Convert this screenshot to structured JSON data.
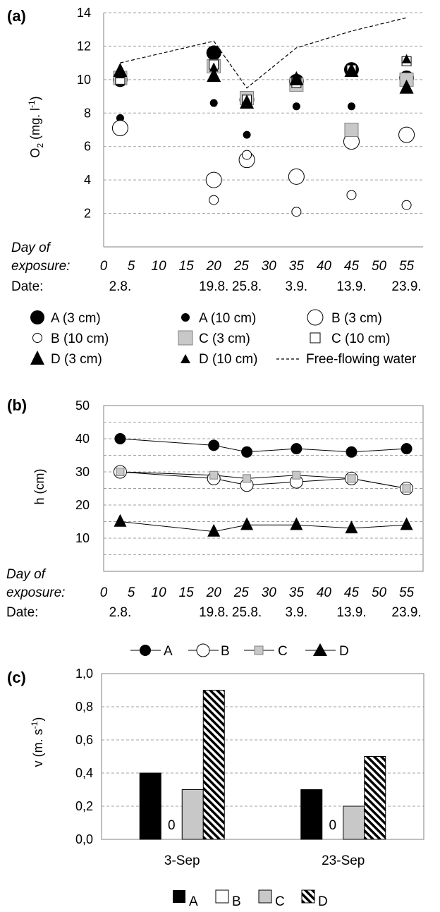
{
  "panels": [
    {
      "letter": "(a)",
      "ylabel_main": "O",
      "ylabel_sub": "2",
      "ylabel_rest": " (mg. l",
      "ylabel_sup": "-1",
      "ylabel_end": ")",
      "day_label_1": "Day of",
      "day_label_2": "exposure:",
      "date_label": "Date:"
    },
    {
      "letter": "(b)",
      "ylabel": "h (cm)",
      "day_label_1": "Day of",
      "day_label_2": "exposure:",
      "date_label": "Date:"
    },
    {
      "letter": "(c)",
      "ylabel_main": "v (m. s",
      "ylabel_sup": "-1",
      "ylabel_end": ")"
    }
  ],
  "chart_data": [
    {
      "type": "scatter",
      "xlim": [
        0,
        58
      ],
      "ylim": [
        0,
        14
      ],
      "yticks": [
        2,
        4,
        6,
        8,
        10,
        12,
        14
      ],
      "xticks": [
        0,
        5,
        10,
        15,
        20,
        25,
        30,
        35,
        40,
        45,
        50,
        55
      ],
      "dates": [
        {
          "x": 3,
          "label": "2.8."
        },
        {
          "x": 20,
          "label": "19.8."
        },
        {
          "x": 26,
          "label": "25.8."
        },
        {
          "x": 35,
          "label": "3.9."
        },
        {
          "x": 45,
          "label": "13.9."
        },
        {
          "x": 55,
          "label": "23.9."
        }
      ],
      "grid": "horizontal dashed",
      "series": [
        {
          "name": "A (3 cm)",
          "marker": "circle-filled-large",
          "x": [
            3,
            20,
            26,
            35,
            45,
            55
          ],
          "y": [
            10.0,
            11.6,
            8.8,
            9.9,
            10.6,
            10.1
          ]
        },
        {
          "name": "A (10 cm)",
          "marker": "circle-filled-small",
          "x": [
            3,
            20,
            26,
            35,
            45,
            55
          ],
          "y": [
            7.7,
            8.6,
            6.7,
            8.4,
            8.4,
            10.1
          ]
        },
        {
          "name": "B (3 cm)",
          "marker": "circle-open-large",
          "x": [
            3,
            20,
            26,
            35,
            45,
            55
          ],
          "y": [
            7.1,
            4.0,
            5.2,
            4.2,
            6.3,
            6.7
          ]
        },
        {
          "name": "B (10 cm)",
          "marker": "circle-open-small",
          "x": [
            3,
            20,
            26,
            35,
            45,
            55
          ],
          "y": [
            10.1,
            2.8,
            5.5,
            2.1,
            3.1,
            2.5
          ]
        },
        {
          "name": "C (3 cm)",
          "marker": "square-gray-large",
          "x": [
            3,
            20,
            26,
            35,
            45,
            55
          ],
          "y": [
            10.1,
            10.8,
            8.9,
            9.7,
            7.0,
            10.0
          ]
        },
        {
          "name": "C (10 cm)",
          "marker": "square-open-small",
          "x": [
            3,
            20,
            26,
            35,
            45,
            55
          ],
          "y": [
            10.0,
            10.9,
            8.8,
            9.8,
            10.6,
            11.1
          ]
        },
        {
          "name": "D (3 cm)",
          "marker": "triangle-large",
          "x": [
            3,
            20,
            26,
            35,
            45,
            55
          ],
          "y": [
            10.5,
            10.2,
            8.6,
            10.0,
            10.5,
            9.5
          ]
        },
        {
          "name": "D (10 cm)",
          "marker": "triangle-small",
          "x": [
            3,
            20,
            26,
            35,
            45,
            55
          ],
          "y": [
            10.3,
            10.7,
            8.7,
            10.1,
            10.4,
            11.2
          ]
        },
        {
          "name": "Free-flowing water",
          "marker": "dashed-line",
          "x": [
            3,
            20,
            26,
            35,
            45,
            55
          ],
          "y": [
            11.0,
            12.3,
            9.5,
            11.9,
            12.9,
            13.7
          ]
        }
      ]
    },
    {
      "type": "line",
      "xlim": [
        0,
        58
      ],
      "ylim": [
        0,
        50
      ],
      "yticks": [
        10,
        20,
        30,
        40,
        50
      ],
      "xticks": [
        0,
        5,
        10,
        15,
        20,
        25,
        30,
        35,
        40,
        45,
        50,
        55
      ],
      "dates": [
        {
          "x": 3,
          "label": "2.8."
        },
        {
          "x": 20,
          "label": "19.8."
        },
        {
          "x": 26,
          "label": "25.8."
        },
        {
          "x": 35,
          "label": "3.9."
        },
        {
          "x": 45,
          "label": "13.9."
        },
        {
          "x": 55,
          "label": "23.9."
        }
      ],
      "grid": "horizontal dashed",
      "series": [
        {
          "name": "A",
          "marker": "circle-filled",
          "x": [
            3,
            20,
            26,
            35,
            45,
            55
          ],
          "y": [
            40,
            38,
            36,
            37,
            36,
            37
          ]
        },
        {
          "name": "B",
          "marker": "circle-open",
          "x": [
            3,
            20,
            26,
            35,
            45,
            55
          ],
          "y": [
            30,
            28,
            26,
            27,
            28,
            25
          ]
        },
        {
          "name": "C",
          "marker": "square-gray",
          "x": [
            3,
            20,
            26,
            35,
            45,
            55
          ],
          "y": [
            30,
            29,
            28,
            29,
            28,
            25
          ]
        },
        {
          "name": "D",
          "marker": "triangle",
          "x": [
            3,
            20,
            26,
            35,
            45,
            55
          ],
          "y": [
            15,
            12,
            14,
            14,
            13,
            14
          ]
        }
      ]
    },
    {
      "type": "bar",
      "categories": [
        "3-Sep",
        "23-Sep"
      ],
      "ylim": [
        0,
        1.0
      ],
      "yticks": [
        "0,0",
        "0,2",
        "0,4",
        "0,6",
        "0,8",
        "1,0"
      ],
      "grid": "horizontal dashed",
      "series": [
        {
          "name": "A",
          "fill": "black",
          "values": [
            0.4,
            0.3
          ]
        },
        {
          "name": "B",
          "fill": "white",
          "values": [
            0,
            0
          ],
          "zero_label": "0"
        },
        {
          "name": "C",
          "fill": "gray",
          "values": [
            0.3,
            0.2
          ]
        },
        {
          "name": "D",
          "fill": "hatched",
          "values": [
            0.9,
            0.5
          ]
        }
      ]
    }
  ],
  "colors": {
    "gray_fill": "#c8c8c8",
    "grid": "#a0a0a0",
    "axis": "#808080"
  }
}
